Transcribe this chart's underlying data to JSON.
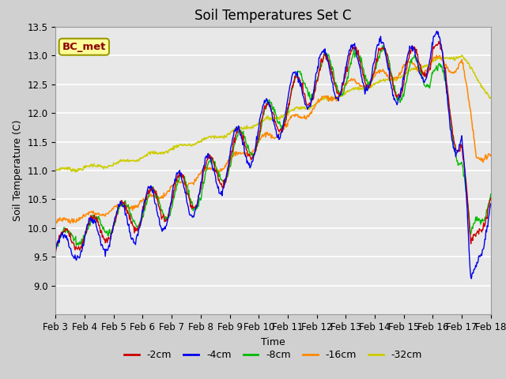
{
  "title": "Soil Temperatures Set C",
  "xlabel": "Time",
  "ylabel": "Soil Temperature (C)",
  "ylim": [
    8.5,
    13.5
  ],
  "xlim": [
    0,
    15
  ],
  "xtick_labels": [
    "Feb 3",
    "Feb 4",
    "Feb 5",
    "Feb 6",
    "Feb 7",
    "Feb 8",
    "Feb 9",
    "Feb 10",
    "Feb 11",
    "Feb 12",
    "Feb 13",
    "Feb 14",
    "Feb 15",
    "Feb 16",
    "Feb 17",
    "Feb 18"
  ],
  "ytick_values": [
    9.0,
    9.5,
    10.0,
    10.5,
    11.0,
    11.5,
    12.0,
    12.5,
    13.0,
    13.5
  ],
  "series_colors": [
    "#cc0000",
    "#0000ee",
    "#00bb00",
    "#ff8800",
    "#cccc00"
  ],
  "series_labels": [
    "-2cm",
    "-4cm",
    "-8cm",
    "-16cm",
    "-32cm"
  ],
  "legend_label": "BC_met",
  "plot_bg_color": "#e8e8e8",
  "fig_bg_color": "#d0d0d0",
  "title_fontsize": 12,
  "label_fontsize": 9,
  "tick_fontsize": 8.5,
  "legend_fontsize": 9
}
